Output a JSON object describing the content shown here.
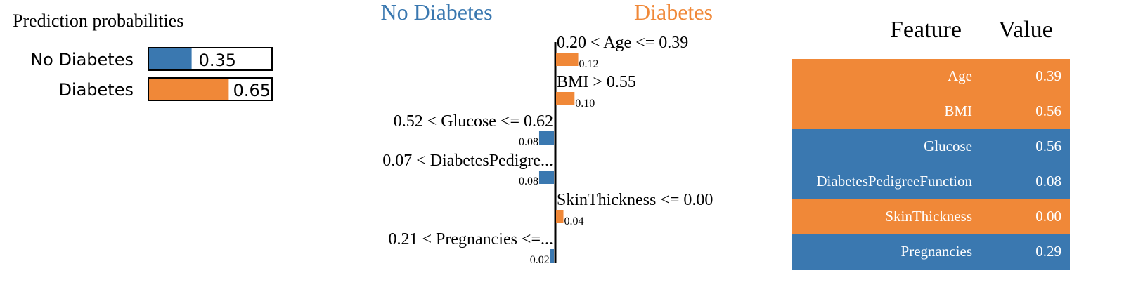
{
  "colors": {
    "negative": "#3a78b0",
    "positive": "#f08838",
    "axis": "#000000",
    "table_text": "#ffffff"
  },
  "chart_data": [
    {
      "type": "bar",
      "title": "Prediction probabilities",
      "categories": [
        "No Diabetes",
        "Diabetes"
      ],
      "values": [
        0.35,
        0.65
      ],
      "value_labels": [
        "0.35",
        "0.65"
      ],
      "xlim": [
        0,
        1
      ],
      "colors": [
        "#3a78b0",
        "#f08838"
      ]
    },
    {
      "type": "bar",
      "orientation": "horizontal",
      "left_header": "No Diabetes",
      "right_header": "Diabetes",
      "categories": [
        "0.20 < Age <= 0.39",
        "BMI > 0.55",
        "0.52 < Glucose <= 0.62",
        "0.07 < DiabetesPedigre...",
        "SkinThickness <= 0.00",
        "0.21 < Pregnancies <=..."
      ],
      "values": [
        0.12,
        0.1,
        -0.08,
        -0.08,
        0.04,
        -0.02
      ],
      "value_labels": [
        "0.12",
        "0.10",
        "0.08",
        "0.08",
        "0.04",
        "0.02"
      ]
    },
    {
      "type": "table",
      "columns": [
        "Feature",
        "Value"
      ],
      "rows": [
        {
          "feature": "Age",
          "value": "0.39",
          "side": "positive"
        },
        {
          "feature": "BMI",
          "value": "0.56",
          "side": "positive"
        },
        {
          "feature": "Glucose",
          "value": "0.56",
          "side": "negative"
        },
        {
          "feature": "DiabetesPedigreeFunction",
          "value": "0.08",
          "side": "negative"
        },
        {
          "feature": "SkinThickness",
          "value": "0.00",
          "side": "positive"
        },
        {
          "feature": "Pregnancies",
          "value": "0.29",
          "side": "negative"
        }
      ]
    }
  ]
}
